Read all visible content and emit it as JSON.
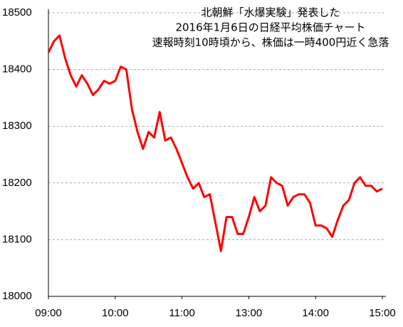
{
  "chart_data": {
    "type": "line",
    "title": [
      "北朝鮮「水爆実験」発表した",
      "2016年1月6日の日経平均株価チャート",
      "速報時刻10時頃から、株価は一時400円近く急落"
    ],
    "x": [
      "09:00",
      "09:05",
      "09:10",
      "09:15",
      "09:20",
      "09:25",
      "09:30",
      "09:35",
      "09:40",
      "09:45",
      "09:50",
      "09:55",
      "10:00",
      "10:05",
      "10:10",
      "10:15",
      "10:20",
      "10:25",
      "10:30",
      "10:35",
      "10:40",
      "10:45",
      "10:50",
      "10:55",
      "11:00",
      "11:05",
      "11:10",
      "11:15",
      "11:20",
      "11:25",
      "11:30",
      "12:35",
      "12:40",
      "12:45",
      "12:50",
      "12:55",
      "13:00",
      "13:05",
      "13:10",
      "13:15",
      "13:20",
      "13:25",
      "13:30",
      "13:35",
      "13:40",
      "13:45",
      "13:50",
      "13:55",
      "14:00",
      "14:05",
      "14:10",
      "14:15",
      "14:20",
      "14:25",
      "14:30",
      "14:35",
      "14:40",
      "14:45",
      "14:50",
      "14:55",
      "15:00"
    ],
    "series": [
      {
        "color": "#ff0000",
        "values": [
          18430,
          18450,
          18460,
          18420,
          18390,
          18370,
          18390,
          18375,
          18355,
          18365,
          18380,
          18375,
          18380,
          18405,
          18400,
          18330,
          18290,
          18260,
          18290,
          18280,
          18325,
          18275,
          18280,
          18260,
          18235,
          18210,
          18190,
          18200,
          18175,
          18180,
          18130,
          18080,
          18140,
          18140,
          18110,
          18110,
          18140,
          18175,
          18150,
          18160,
          18210,
          18200,
          18195,
          18160,
          18175,
          18180,
          18180,
          18165,
          18125,
          18125,
          18120,
          18105,
          18135,
          18160,
          18170,
          18200,
          18210,
          18195,
          18195,
          18185,
          18190
        ]
      }
    ],
    "xticks": [
      "09:00",
      "10:00",
      "11:00",
      "13:00",
      "14:00",
      "15:00"
    ],
    "ylim": [
      18000,
      18500
    ],
    "yticks": [
      18000,
      18100,
      18200,
      18300,
      18400,
      18500
    ],
    "grid": true
  }
}
